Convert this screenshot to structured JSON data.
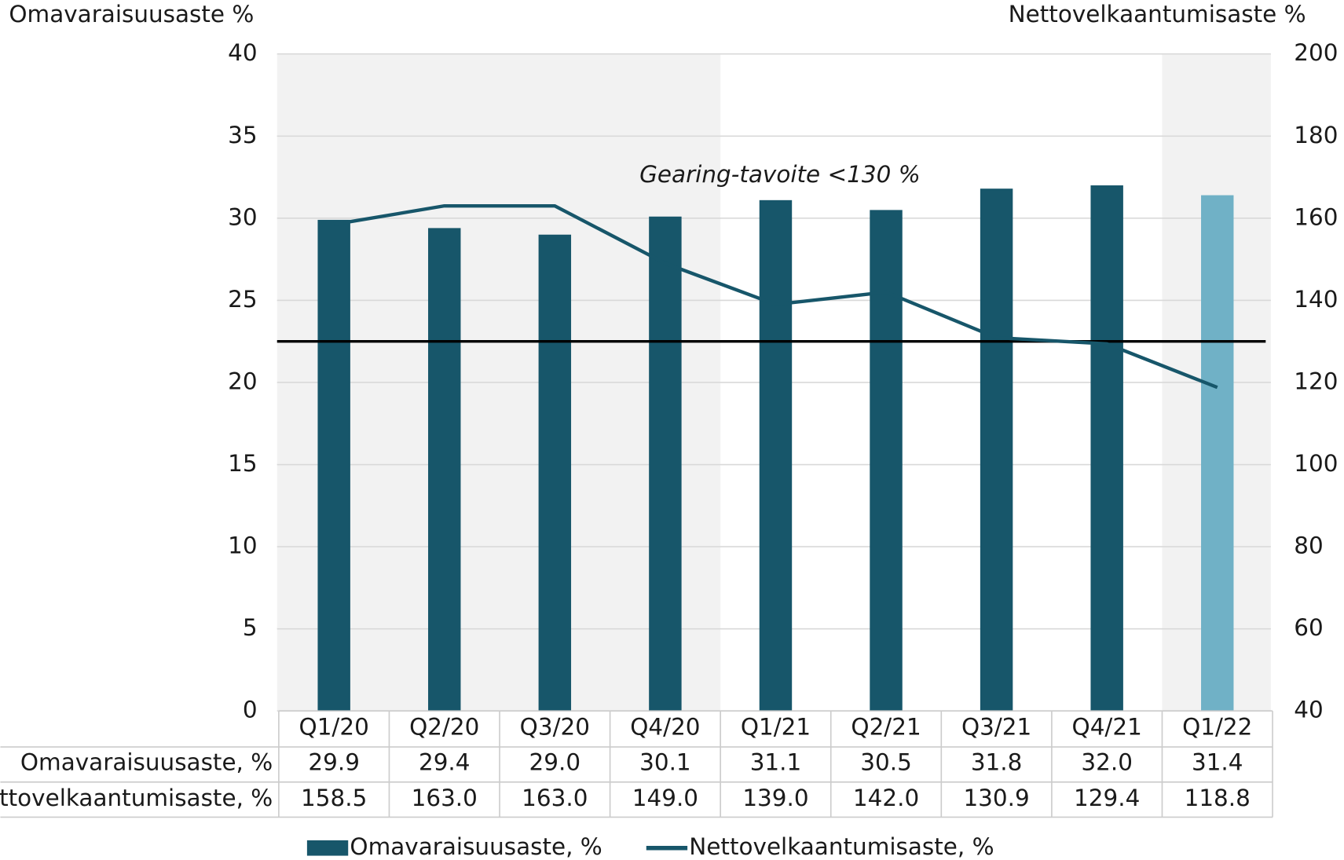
{
  "chart_data": {
    "type": "bar",
    "y_axis_title": "Omavaraisuusaste %",
    "y2_axis_title": "Nettovelkaantumisaste %",
    "categories": [
      "Q1/20",
      "Q2/20",
      "Q3/20",
      "Q4/20",
      "Q1/21",
      "Q2/21",
      "Q3/21",
      "Q4/21",
      "Q1/22"
    ],
    "series": [
      {
        "name": "Omavaraisuusaste, %",
        "type": "bar",
        "color": "#17566a",
        "colors": [
          "#17566a",
          "#17566a",
          "#17566a",
          "#17566a",
          "#17566a",
          "#17566a",
          "#17566a",
          "#17566a",
          "#70b1c6"
        ],
        "values": [
          29.9,
          29.4,
          29.0,
          30.1,
          31.1,
          30.5,
          31.8,
          32.0,
          31.4
        ],
        "value_labels": [
          "29.9",
          "29.4",
          "29.0",
          "30.1",
          "31.1",
          "30.5",
          "31.8",
          "32.0",
          "31.4"
        ]
      },
      {
        "name": "Nettovelkaantumisaste, %",
        "type": "line",
        "axis": "y2",
        "color": "#17566a",
        "values": [
          158.5,
          163.0,
          163.0,
          149.0,
          139.0,
          142.0,
          130.9,
          129.4,
          118.8
        ],
        "value_labels": [
          "158.5",
          "163.0",
          "163.0",
          "149.0",
          "139.0",
          "142.0",
          "130.9",
          "129.4",
          "118.8"
        ]
      }
    ],
    "reference_line": {
      "axis": "y2",
      "value": 130,
      "label": "Gearing-tavoite <130 %",
      "color": "#000000"
    },
    "ylim": [
      0,
      40
    ],
    "yticks": [
      0,
      5,
      10,
      15,
      20,
      25,
      30,
      35,
      40
    ],
    "y2lim": [
      40,
      200
    ],
    "y2ticks": [
      40,
      60,
      80,
      100,
      120,
      140,
      160,
      180,
      200
    ],
    "grid": true,
    "legend": "bottom"
  }
}
